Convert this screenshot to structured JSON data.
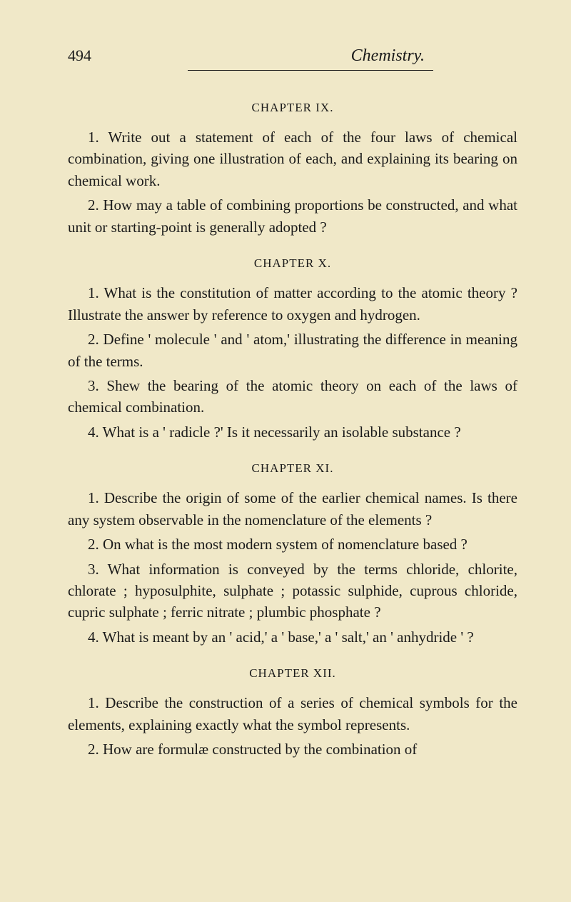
{
  "header": {
    "pageNumber": "494",
    "title": "Chemistry."
  },
  "chapters": {
    "ix": {
      "heading": "CHAPTER IX.",
      "paragraphs": [
        "1. Write out a statement of each of the four laws of chemical combination, giving one illustration of each, and explaining its bearing on chemical work.",
        "2. How may a table of combining proportions be constructed, and what unit or starting-point is generally adopted ?"
      ]
    },
    "x": {
      "heading": "CHAPTER X.",
      "paragraphs": [
        "1. What is the constitution of matter according to the atomic theory ? Illustrate the answer by reference to oxygen and hydrogen.",
        "2. Define ' molecule ' and ' atom,' illustrating the difference in meaning of the terms.",
        "3. Shew the bearing of the atomic theory on each of the laws of chemical combination.",
        "4. What is a ' radicle ?' Is it necessarily an isolable substance ?"
      ]
    },
    "xi": {
      "heading": "CHAPTER XI.",
      "paragraphs": [
        "1. Describe the origin of some of the earlier chemical names. Is there any system observable in the nomenclature of the elements ?",
        "2. On what is the most modern system of nomenclature based ?",
        "3. What information is conveyed by the terms chloride, chlorite, chlorate ; hyposulphite, sulphate ; potassic sulphide, cuprous chloride, cupric sulphate ; ferric nitrate ; plumbic phosphate ?",
        "4. What is meant by an ' acid,' a ' base,' a ' salt,' an ' anhydride ' ?"
      ]
    },
    "xii": {
      "heading": "CHAPTER XII.",
      "paragraphs": [
        "1. Describe the construction of a series of chemical symbols for the elements, explaining exactly what the symbol represents.",
        "2. How are formulæ constructed by the combination of"
      ]
    }
  }
}
